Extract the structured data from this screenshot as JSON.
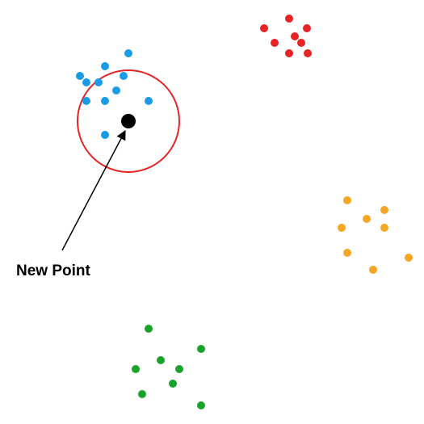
{
  "diagram": {
    "label": "New Point",
    "colors": {
      "blue": "#1a9be6",
      "red": "#e62424",
      "orange": "#f5a623",
      "green": "#1aa32a",
      "new_point": "#000000",
      "circle": "#e62424",
      "arrow": "#000000"
    }
  }
}
